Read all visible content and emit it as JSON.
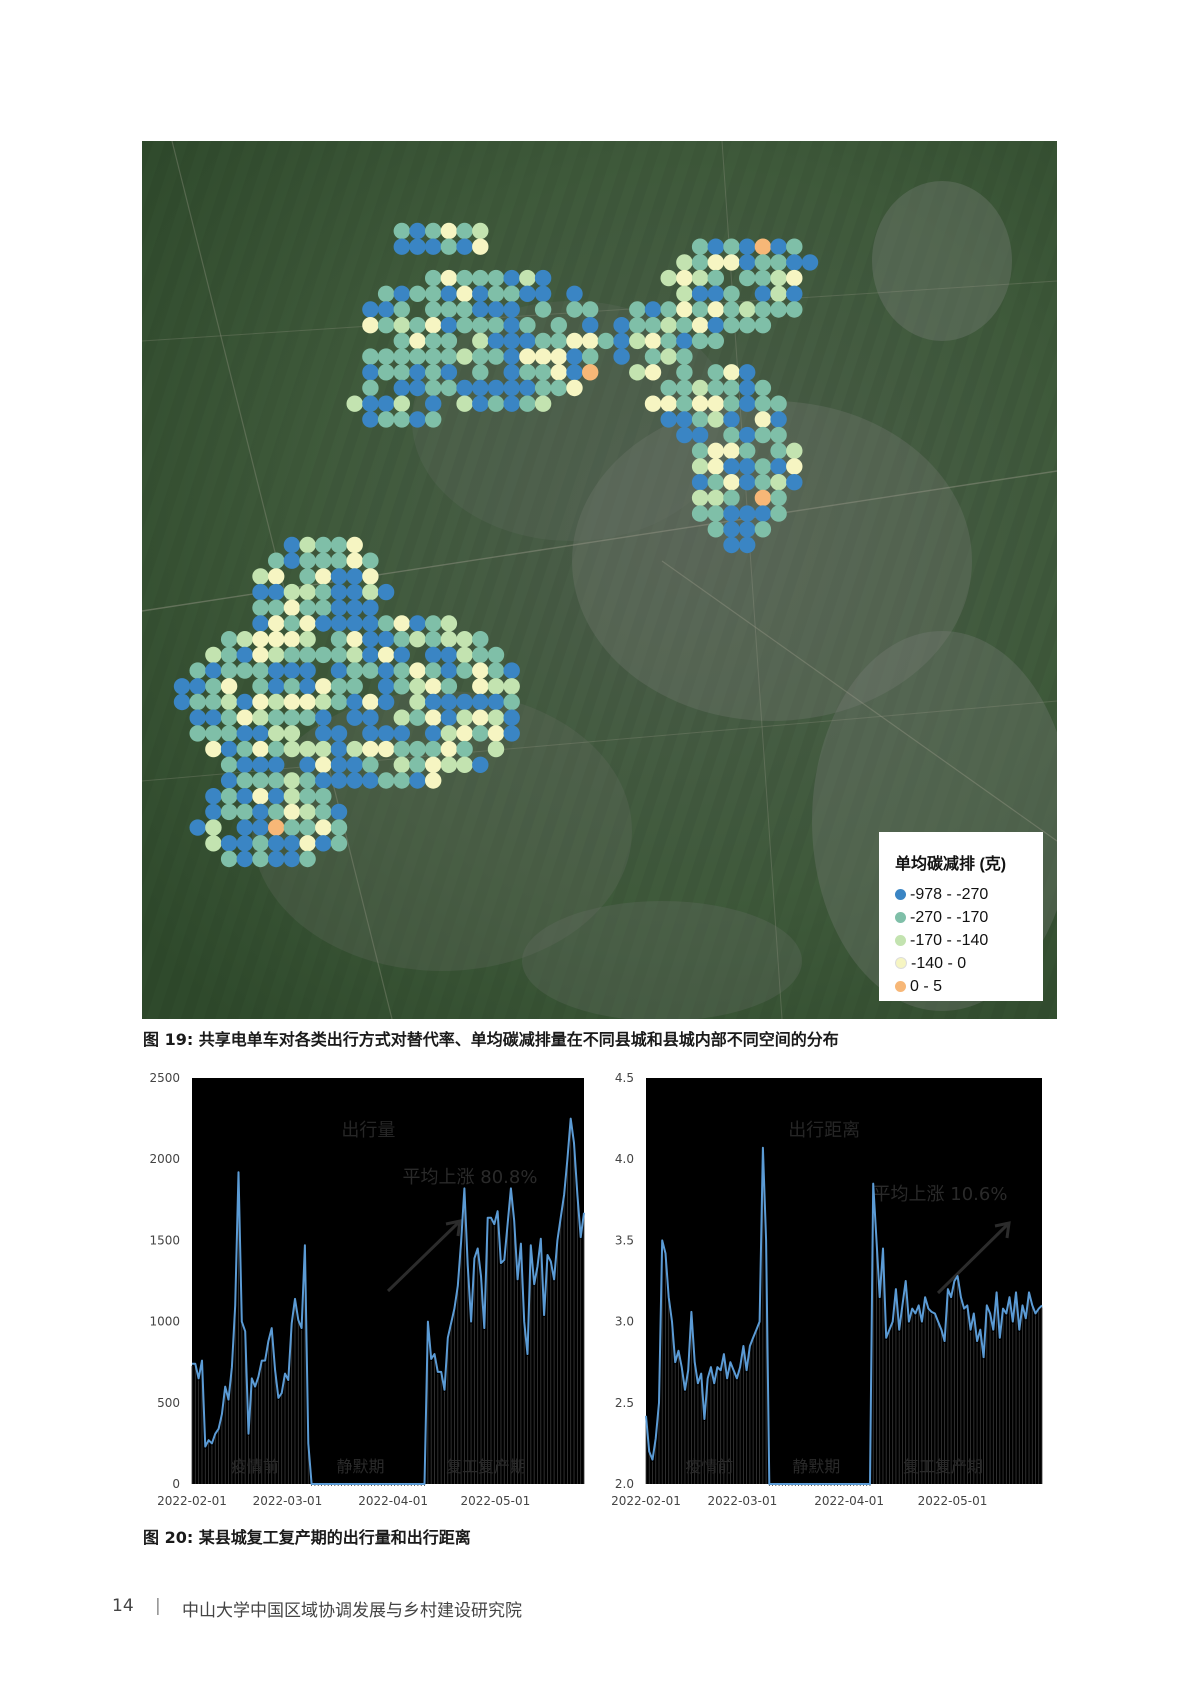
{
  "map": {
    "legend": {
      "title": "单均碳减排 (克)",
      "items": [
        {
          "label": "-978 - -270",
          "color": "#3a85c4"
        },
        {
          "label": "-270 - -170",
          "color": "#7fbfa8"
        },
        {
          "label": "-170 - -140",
          "color": "#c3e3b0"
        },
        {
          "label": "-140 - 0",
          "color": "#f6f5c2"
        },
        {
          "label": "0 - 5",
          "color": "#f7b777"
        }
      ]
    }
  },
  "figure19_caption": "图 19: 共享电单车对各类出行方式对替代率、单均碳减排量在不同县城和县城内部不同空间的分布",
  "figure20_caption": "图 20: 某县城复工复产期的出行量和出行距离",
  "chart_data": [
    {
      "type": "line",
      "title": "出行量",
      "annotation": "平均上涨 80.8%",
      "phase_labels": [
        "疫情前",
        "静默期",
        "复工复产期"
      ],
      "x_ticks": [
        "2022-02-01",
        "2022-03-01",
        "2022-04-01",
        "2022-05-01"
      ],
      "y_ticks": [
        "0",
        "500",
        "1000",
        "1500",
        "2000",
        "2500"
      ],
      "ylim": [
        0,
        2500
      ],
      "x_start": "2022-02-01",
      "x_end": "2022-05-27",
      "values": [
        740,
        740,
        650,
        760,
        230,
        270,
        250,
        310,
        340,
        430,
        600,
        520,
        720,
        1100,
        1920,
        1000,
        940,
        310,
        650,
        600,
        660,
        760,
        760,
        880,
        960,
        700,
        530,
        560,
        680,
        640,
        990,
        1140,
        1010,
        960,
        1470,
        250,
        0,
        0,
        0,
        0,
        0,
        0,
        0,
        0,
        0,
        0,
        0,
        0,
        0,
        0,
        0,
        0,
        0,
        0,
        0,
        0,
        0,
        0,
        0,
        0,
        0,
        0,
        0,
        0,
        0,
        0,
        0,
        0,
        0,
        0,
        0,
        1000,
        770,
        800,
        690,
        690,
        580,
        900,
        990,
        1080,
        1220,
        1490,
        1820,
        1350,
        1000,
        1390,
        1450,
        1280,
        960,
        1640,
        1640,
        1600,
        1680,
        1360,
        1380,
        1600,
        1820,
        1620,
        1260,
        1480,
        1000,
        800,
        1470,
        1230,
        1340,
        1510,
        1040,
        1410,
        1370,
        1260,
        1500,
        1640,
        1780,
        2000,
        2250,
        2100,
        1780,
        1520,
        1670
      ]
    },
    {
      "type": "line",
      "title": "出行距离",
      "annotation": "平均上涨 10.6%",
      "phase_labels": [
        "疫情前",
        "静默期",
        "复工复产期"
      ],
      "x_ticks": [
        "2022-02-01",
        "2022-03-01",
        "2022-04-01",
        "2022-05-01"
      ],
      "y_ticks": [
        "2.0",
        "2.5",
        "3.0",
        "3.5",
        "4.0",
        "4.5"
      ],
      "ylim": [
        2.0,
        4.5
      ],
      "x_start": "2022-02-01",
      "x_end": "2022-05-27",
      "values": [
        2.42,
        2.2,
        2.15,
        2.28,
        2.5,
        3.5,
        3.42,
        3.15,
        3.0,
        2.75,
        2.82,
        2.72,
        2.58,
        2.7,
        3.06,
        2.75,
        2.62,
        2.68,
        2.4,
        2.65,
        2.72,
        2.62,
        2.72,
        2.7,
        2.8,
        2.65,
        2.75,
        2.7,
        2.65,
        2.72,
        2.85,
        2.7,
        2.85,
        2.9,
        2.95,
        3.0,
        4.07,
        3.5,
        2.0,
        2.0,
        2.0,
        2.0,
        2.0,
        2.0,
        2.0,
        2.0,
        2.0,
        2.0,
        2.0,
        2.0,
        2.0,
        2.0,
        2.0,
        2.0,
        2.0,
        2.0,
        2.0,
        2.0,
        2.0,
        2.0,
        2.0,
        2.0,
        2.0,
        2.0,
        2.0,
        2.0,
        2.0,
        2.0,
        2.0,
        2.0,
        3.85,
        3.5,
        3.15,
        3.45,
        2.9,
        2.95,
        3.0,
        3.2,
        2.95,
        3.1,
        3.25,
        3.0,
        3.08,
        3.05,
        3.1,
        3.0,
        3.15,
        3.08,
        3.06,
        3.05,
        3.0,
        2.95,
        2.88,
        3.2,
        3.15,
        3.25,
        3.28,
        3.15,
        3.08,
        3.1,
        2.95,
        3.05,
        2.88,
        2.95,
        2.78,
        3.1,
        3.05,
        2.95,
        3.18,
        2.9,
        3.08,
        3.05,
        3.15,
        3.0,
        3.18,
        2.95,
        3.1,
        3.02,
        3.18,
        3.1,
        3.05,
        3.08,
        3.1
      ]
    }
  ],
  "footer": {
    "page_number": "14",
    "separator": "|",
    "institute": "中山大学中国区域协调发展与乡村建设研究院"
  }
}
